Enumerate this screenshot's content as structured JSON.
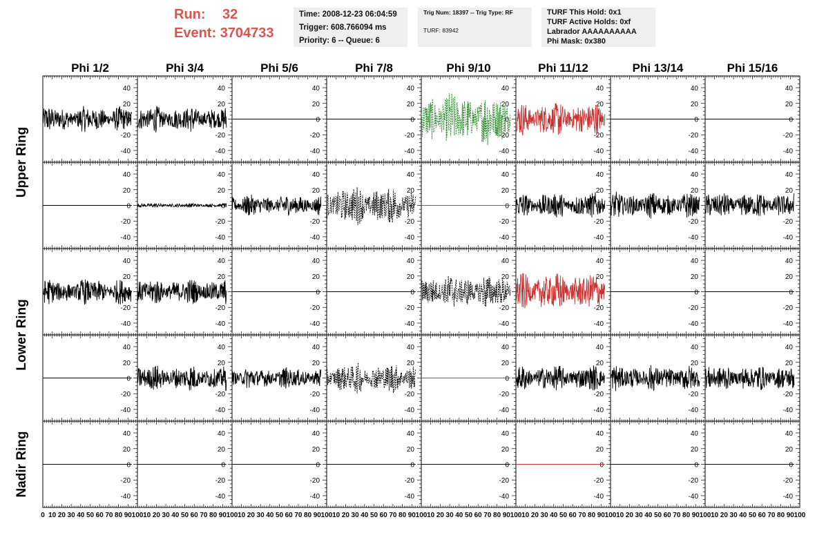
{
  "header": {
    "run_label": "Run:",
    "run_value": "32",
    "event_label": "Event:",
    "event_value": "3704733"
  },
  "info": {
    "time": "Time: 2008-12-23 06:04:59",
    "trigger": "Trigger: 608.766094 ms",
    "priority": "Priority: 6 -- Queue: 6",
    "trig_num": "Trig Num: 18397 -- Trig Type: RF",
    "turf": "TURF: 83942",
    "turf_hold": "TURF This Hold: 0x1",
    "turf_active": "TURF Active Holds: 0xf",
    "labrador": "Labrador AAAAAAAAAA",
    "phi_mask": "Phi Mask: 0x380"
  },
  "colors": {
    "default": "#000000",
    "green": "#2a8a2a",
    "red": "#c83232"
  },
  "chart_data": {
    "type": "line",
    "columns": [
      "Phi 1/2",
      "Phi 3/4",
      "Phi 5/6",
      "Phi 7/8",
      "Phi 9/10",
      "Phi 11/12",
      "Phi 13/14",
      "Phi 15/16"
    ],
    "ring_labels": [
      "Upper Ring",
      "Lower Ring",
      "Nadir Ring"
    ],
    "xlim": [
      0,
      100
    ],
    "ylim": [
      -55,
      55
    ],
    "y_ticks": [
      40,
      20,
      0,
      -20,
      -40
    ],
    "x_ticks": [
      0,
      10,
      20,
      30,
      40,
      50,
      60,
      70,
      80,
      90,
      100
    ],
    "rows": [
      [
        {
          "amp": 12,
          "color": "default",
          "dashed": false
        },
        {
          "amp": 12,
          "color": "default",
          "dashed": false
        },
        {
          "amp": 0,
          "color": "default",
          "dashed": false
        },
        {
          "amp": 0,
          "color": "default",
          "dashed": false
        },
        {
          "amp": 25,
          "color": "green",
          "dashed": true
        },
        {
          "amp": 16,
          "color": "red",
          "dashed": false
        },
        {
          "amp": 0,
          "color": "default",
          "dashed": false
        },
        {
          "amp": 0,
          "color": "default",
          "dashed": false
        }
      ],
      [
        {
          "amp": 0,
          "color": "default",
          "dashed": false
        },
        {
          "amp": 2,
          "color": "default",
          "dashed": false
        },
        {
          "amp": 10,
          "color": "default",
          "dashed": false
        },
        {
          "amp": 18,
          "color": "default",
          "dashed": true
        },
        {
          "amp": 0,
          "color": "green",
          "dashed": false
        },
        {
          "amp": 12,
          "color": "default",
          "dashed": false
        },
        {
          "amp": 12,
          "color": "default",
          "dashed": false
        },
        {
          "amp": 12,
          "color": "default",
          "dashed": false
        }
      ],
      [
        {
          "amp": 12,
          "color": "default",
          "dashed": false
        },
        {
          "amp": 12,
          "color": "default",
          "dashed": false
        },
        {
          "amp": 0,
          "color": "default",
          "dashed": false
        },
        {
          "amp": 0,
          "color": "default",
          "dashed": false
        },
        {
          "amp": 16,
          "color": "default",
          "dashed": true
        },
        {
          "amp": 18,
          "color": "red",
          "dashed": false
        },
        {
          "amp": 0,
          "color": "default",
          "dashed": false
        },
        {
          "amp": 0,
          "color": "default",
          "dashed": false
        }
      ],
      [
        {
          "amp": 0,
          "color": "default",
          "dashed": false
        },
        {
          "amp": 12,
          "color": "default",
          "dashed": false
        },
        {
          "amp": 10,
          "color": "default",
          "dashed": false
        },
        {
          "amp": 14,
          "color": "default",
          "dashed": true
        },
        {
          "amp": 0,
          "color": "green",
          "dashed": false
        },
        {
          "amp": 12,
          "color": "default",
          "dashed": false
        },
        {
          "amp": 12,
          "color": "default",
          "dashed": false
        },
        {
          "amp": 12,
          "color": "default",
          "dashed": false
        }
      ],
      [
        {
          "amp": 0,
          "color": "default",
          "dashed": false
        },
        {
          "amp": 0,
          "color": "default",
          "dashed": false
        },
        {
          "amp": 0,
          "color": "default",
          "dashed": false
        },
        {
          "amp": 0,
          "color": "default",
          "dashed": false
        },
        {
          "amp": 0,
          "color": "default",
          "dashed": false
        },
        {
          "amp": 0,
          "color": "red",
          "dashed": false
        },
        {
          "amp": 0,
          "color": "default",
          "dashed": false
        },
        {
          "amp": 0,
          "color": "default",
          "dashed": false
        }
      ]
    ]
  }
}
